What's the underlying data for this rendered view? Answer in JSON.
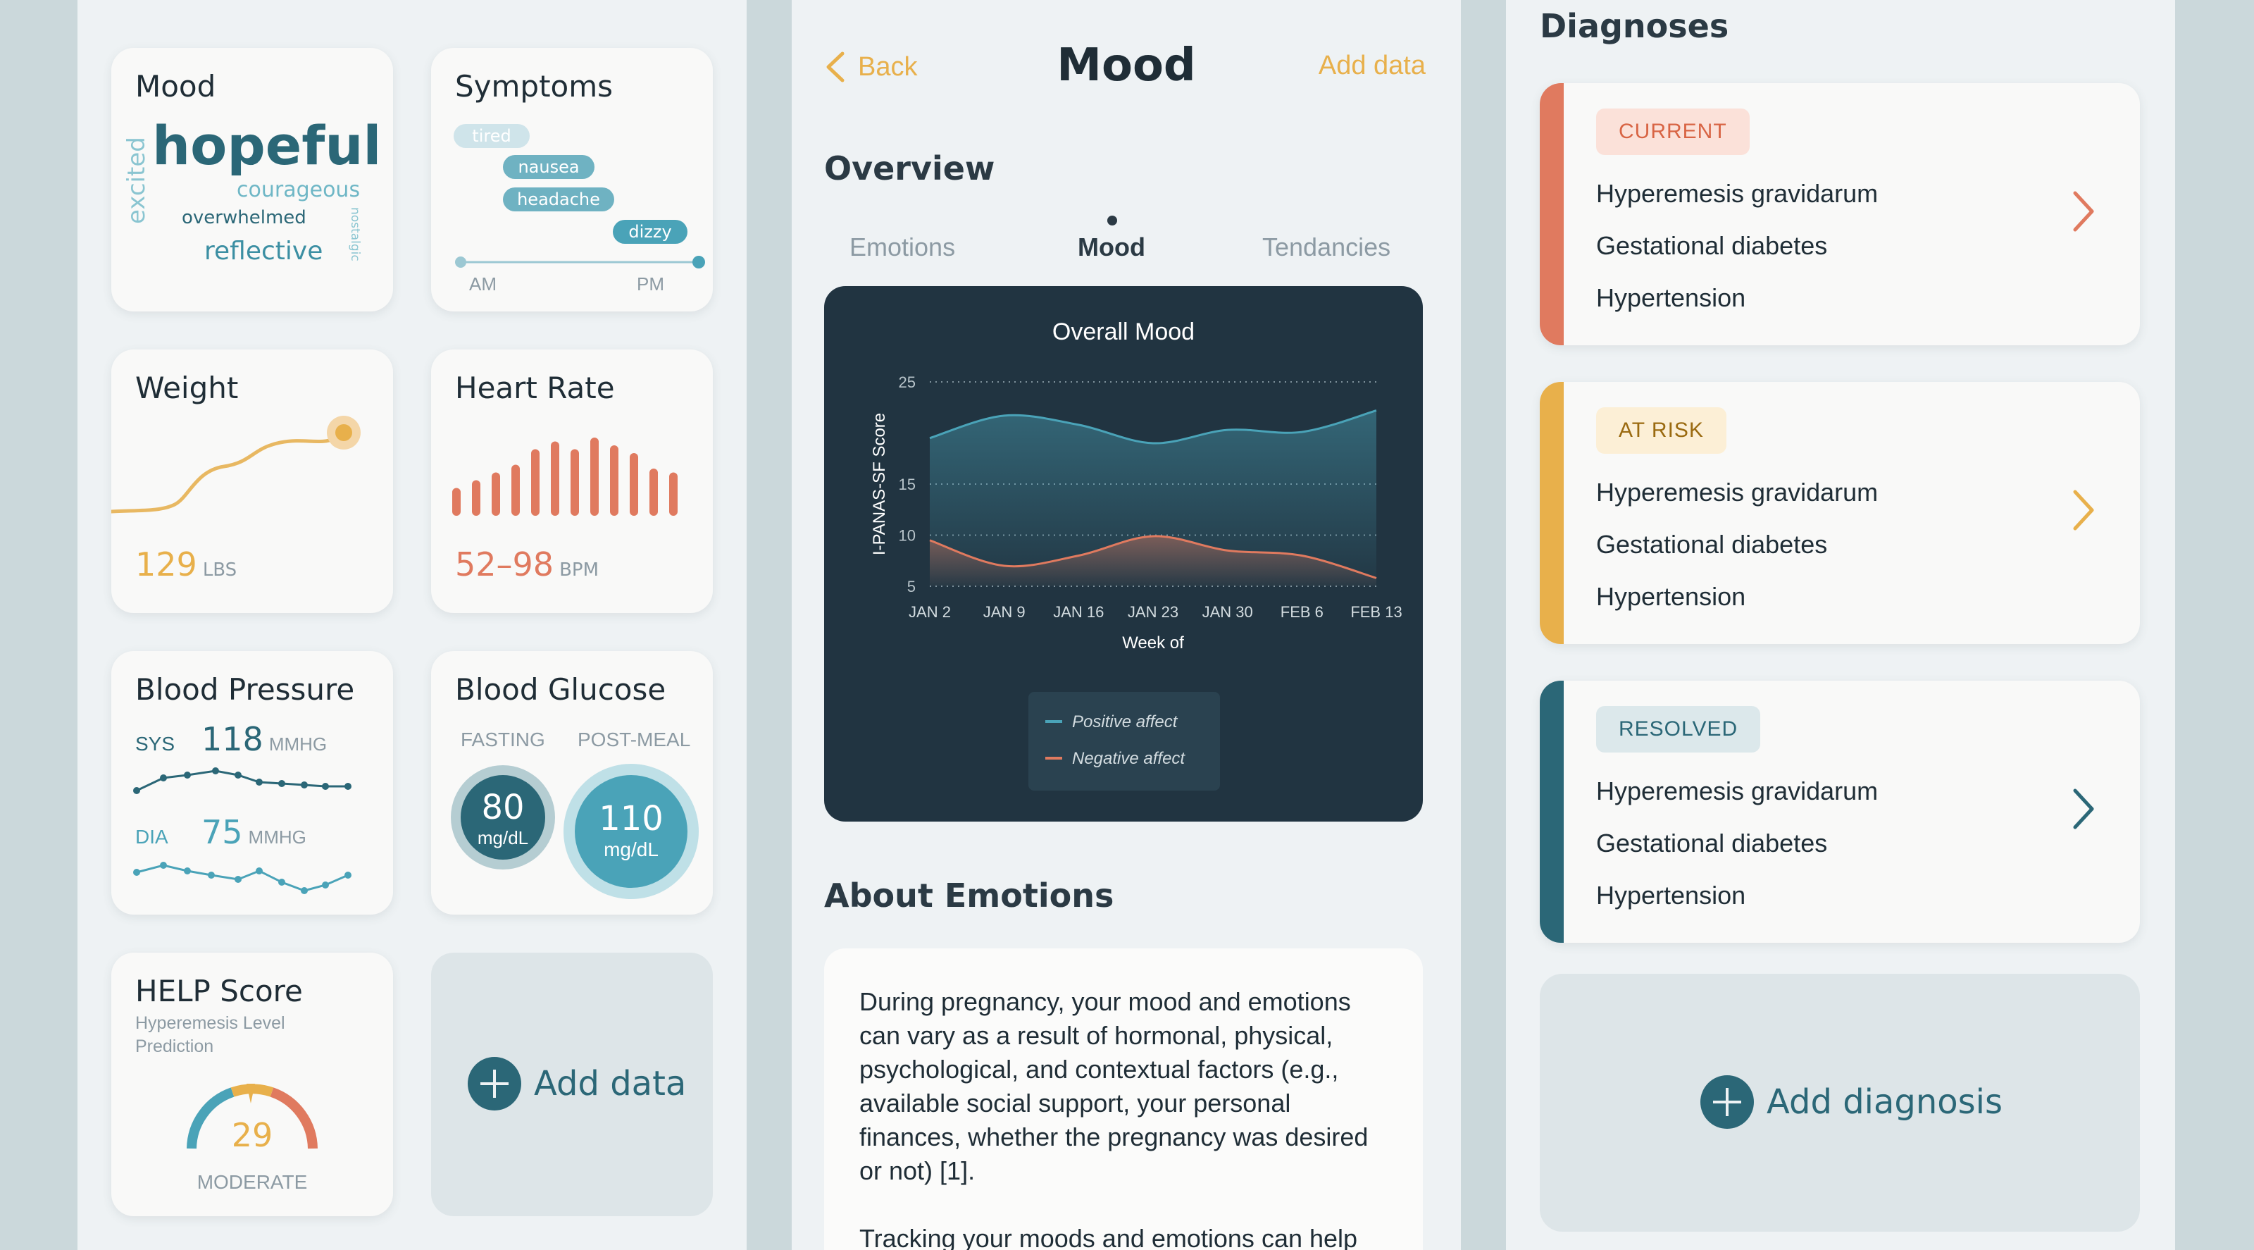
{
  "dashboard": {
    "mood": {
      "title": "Mood",
      "words": [
        "hopeful",
        "courageous",
        "excited",
        "overwhelmed",
        "nostalgic",
        "reflective"
      ]
    },
    "symptoms": {
      "title": "Symptoms",
      "tags": [
        "tired",
        "nausea",
        "headache",
        "dizzy"
      ],
      "am": "AM",
      "pm": "PM"
    },
    "weight": {
      "title": "Weight",
      "value": "129",
      "unit": "LBS"
    },
    "heart_rate": {
      "title": "Heart Rate",
      "value": "52–98",
      "unit": "BPM",
      "bars": [
        0.25,
        0.35,
        0.45,
        0.55,
        0.75,
        0.85,
        0.75,
        0.9,
        0.8,
        0.7,
        0.5,
        0.45
      ]
    },
    "blood_pressure": {
      "title": "Blood Pressure",
      "sys_label": "SYS",
      "sys_value": "118",
      "sys_unit": "MMHG",
      "dia_label": "DIA",
      "dia_value": "75",
      "dia_unit": "MMHG"
    },
    "blood_glucose": {
      "title": "Blood Glucose",
      "fasting_label": "FASTING",
      "fasting_value": "80",
      "fasting_unit": "mg/dL",
      "postmeal_label": "POST-MEAL",
      "postmeal_value": "110",
      "postmeal_unit": "mg/dL"
    },
    "help_score": {
      "title": "HELP Score",
      "subtitle": "Hyperemesis Level Prediction",
      "value": "29",
      "level": "MODERATE"
    },
    "add_data": "Add data"
  },
  "mood_screen": {
    "back": "Back",
    "title": "Mood",
    "add_data": "Add data",
    "overview": "Overview",
    "tabs": [
      "Emotions",
      "Mood",
      "Tendancies"
    ],
    "about_title": "About Emotions",
    "about_p1": "During pregnancy, your mood and emotions can vary as a result of hormonal, physical, psychological, and contextual factors (e.g., available social support, your personal finances, whether the pregnancy was desired or not) [1].",
    "about_p2": "Tracking your moods and emotions can help"
  },
  "chart_data": {
    "type": "area",
    "title": "Overall Mood",
    "xlabel": "Week of",
    "ylabel": "I-PANAS-SF Score",
    "categories": [
      "JAN 2",
      "JAN 9",
      "JAN 16",
      "JAN 23",
      "JAN 30",
      "FEB 6",
      "FEB 13"
    ],
    "yticks": [
      5,
      10,
      15,
      25
    ],
    "ylim": [
      5,
      25
    ],
    "series": [
      {
        "name": "Positive affect",
        "color": "#4aa3b8",
        "values": [
          19.5,
          21.7,
          20.8,
          19.0,
          20.3,
          20.1,
          22.2
        ]
      },
      {
        "name": "Negative affect",
        "color": "#e07a5f",
        "values": [
          9.5,
          7.0,
          8.0,
          9.9,
          8.5,
          8.0,
          5.8
        ]
      }
    ],
    "legend_position": "bottom-center",
    "grid": true
  },
  "diagnoses": {
    "title": "Diagnoses",
    "groups": [
      {
        "status": "CURRENT",
        "items": [
          "Hyperemesis gravidarum",
          "Gestational diabetes",
          "Hypertension"
        ]
      },
      {
        "status": "AT RISK",
        "items": [
          "Hyperemesis gravidarum",
          "Gestational diabetes",
          "Hypertension"
        ]
      },
      {
        "status": "RESOLVED",
        "items": [
          "Hyperemesis gravidarum",
          "Gestational diabetes",
          "Hypertension"
        ]
      }
    ],
    "add_diagnosis": "Add diagnosis"
  },
  "colors": {
    "accent_orange": "#e07a5f",
    "accent_yellow": "#e8b04b",
    "accent_teal": "#2b6777",
    "light_teal": "#4aa3b8",
    "chart_bg": "#213441"
  }
}
